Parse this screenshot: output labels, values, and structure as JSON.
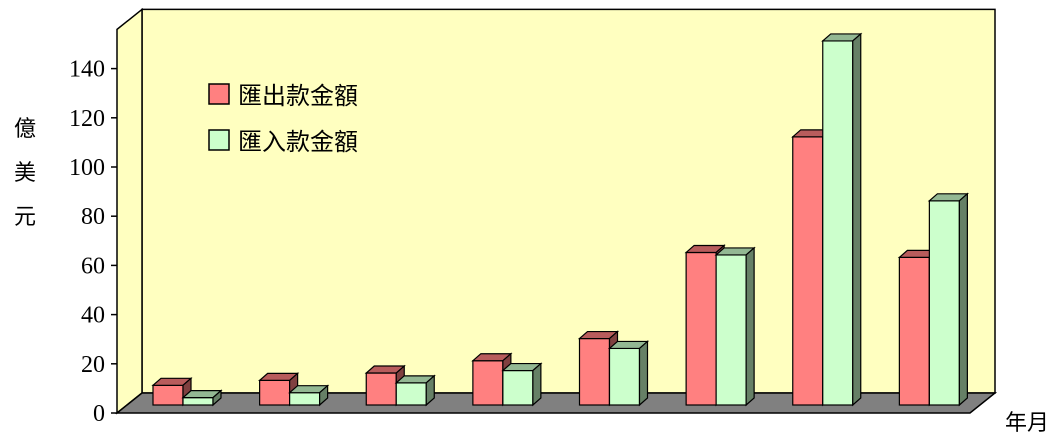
{
  "chart_data": {
    "type": "bar",
    "categories": [
      "",
      "",
      "",
      "",
      "",
      "",
      "",
      ""
    ],
    "series": [
      {
        "name": "匯出款金額",
        "values": [
          8,
          10,
          13,
          18,
          27,
          62,
          109,
          60
        ],
        "color": "#ff8080"
      },
      {
        "name": "匯入款金額",
        "values": [
          3,
          5,
          9,
          14,
          23,
          61,
          148,
          83
        ],
        "color": "#ccffcc"
      }
    ],
    "y_ticks": [
      "0",
      "20",
      "40",
      "60",
      "80",
      "100",
      "120",
      "140"
    ],
    "ylabel_chars": [
      "億",
      "美",
      "元"
    ],
    "xlabel": "年月",
    "ylim": [
      0,
      160
    ],
    "wall_color": "#ffffc0",
    "floor_color": "#808080",
    "grid": false,
    "three_d": true,
    "legend_position": "top-left"
  }
}
